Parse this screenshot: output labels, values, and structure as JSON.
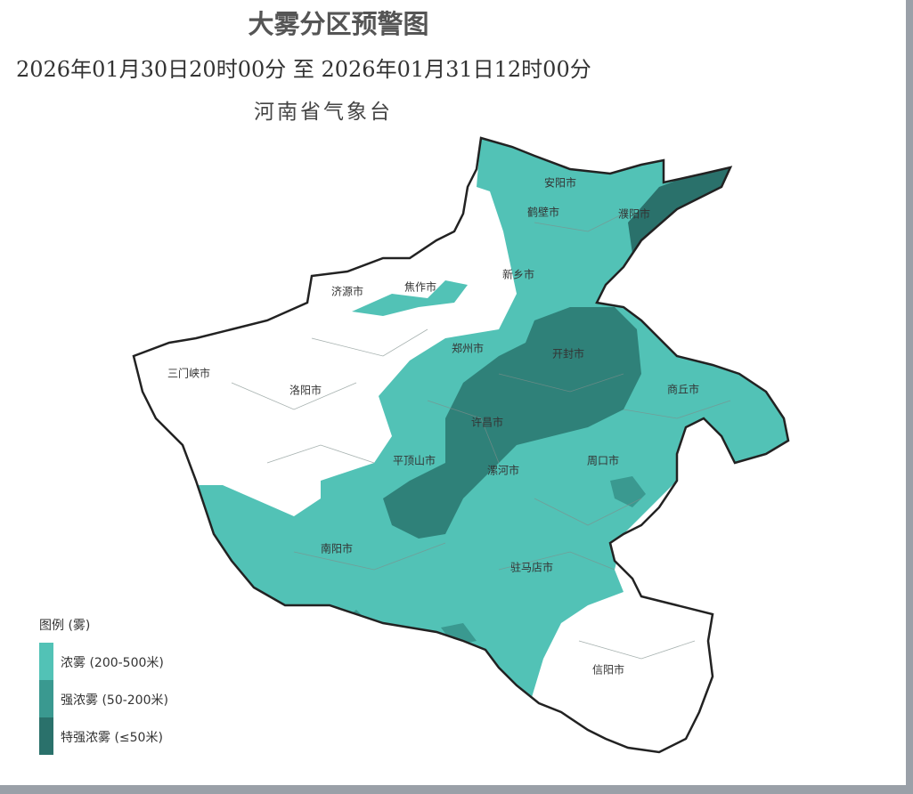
{
  "title": "大雾分区预警图",
  "period": "2026年01月30日20时00分 至 2026年01月31日12时00分",
  "issuer": "河南省气象台",
  "colors": {
    "heavy_fog": "#52c2b6",
    "dense_fog": "#3a9990",
    "extra_dense_fog": "#2a716b",
    "no_warning": "#ffffff",
    "border": "#222222"
  },
  "cities": [
    "安阳市",
    "鹤壁市",
    "濮阳市",
    "新乡市",
    "焦作市",
    "济源市",
    "郑州市",
    "开封市",
    "三门峡市",
    "洛阳市",
    "商丘市",
    "许昌市",
    "平顶山市",
    "漯河市",
    "周口市",
    "南阳市",
    "驻马店市",
    "信阳市"
  ],
  "legend": {
    "title": "图例 (雾)",
    "items": [
      {
        "label": "浓雾 (200-500米)",
        "color": "#52c2b6"
      },
      {
        "label": "强浓雾 (50-200米)",
        "color": "#3a9990"
      },
      {
        "label": "特强浓雾 (≤50米)",
        "color": "#2a716b"
      }
    ]
  }
}
